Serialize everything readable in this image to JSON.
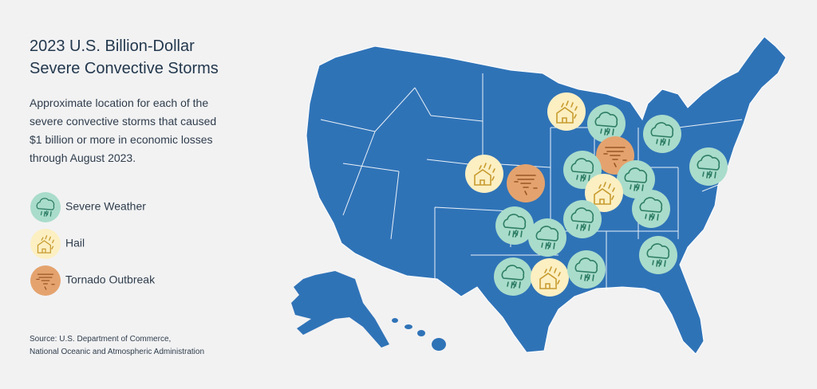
{
  "title": [
    "2023 U.S. Billion-Dollar",
    "Severe Convective Storms"
  ],
  "description": [
    "Approximate location for each of the",
    "severe convective storms that caused",
    "$1 billion or more in economic losses",
    "through August 2023."
  ],
  "legend": [
    "Severe Weather",
    "Hail",
    "Tornado Outbreak"
  ],
  "source": [
    "Source: U.S. Department of Commerce,",
    "National Oceanic and Atmospheric Administration"
  ]
}
